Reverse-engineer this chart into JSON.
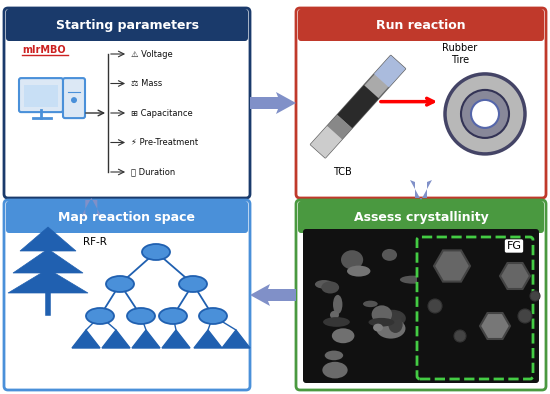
{
  "bg_color": "#ffffff",
  "arrow_color": "#8090c8",
  "title_colors": {
    "top_left": "#1a3a6b",
    "top_right": "#c0392b",
    "bottom_left": "#4a90d9",
    "bottom_right": "#4a9940"
  },
  "panel_border_colors": {
    "top_left": "#1a3a6b",
    "top_right": "#c0392b",
    "bottom_left": "#4a90d9",
    "bottom_right": "#4a9940"
  },
  "panel_titles": {
    "top_left": "Starting parameters",
    "top_right": "Run reaction",
    "bottom_left": "Map reaction space",
    "bottom_right": "Assess crystallinity"
  },
  "mlrmbo_color": "#cc2222",
  "computer_color": "#4a90d9",
  "tree_color": "#2060b0",
  "node_color": "#4a90d9",
  "node_edge_color": "#2060b0",
  "params_list": [
    "⚠ Voltage",
    "⚖ Mass",
    "⊞ Capacitance",
    "⚡ Pre-Treatment",
    "⏱ Duration"
  ]
}
